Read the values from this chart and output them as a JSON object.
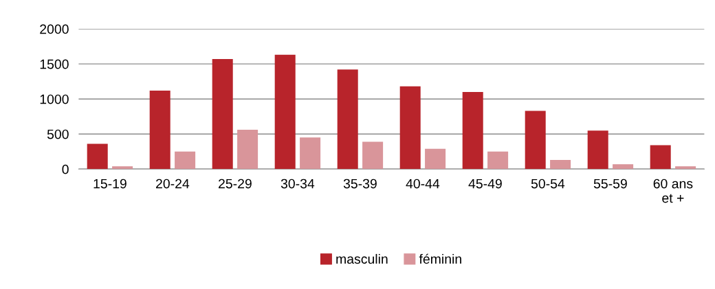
{
  "chart_data": {
    "type": "bar",
    "categories": [
      "15-19",
      "20-24",
      "25-29",
      "30-34",
      "35-39",
      "40-44",
      "45-49",
      "50-54",
      "55-59",
      "60 ans\net +"
    ],
    "series": [
      {
        "name": "masculin",
        "color": "#b8242b",
        "values": [
          360,
          1120,
          1570,
          1630,
          1420,
          1180,
          1100,
          830,
          550,
          340
        ]
      },
      {
        "name": "féminin",
        "color": "#d9959a",
        "values": [
          40,
          250,
          560,
          450,
          390,
          290,
          250,
          130,
          70,
          40
        ]
      }
    ],
    "ylim": [
      0,
      2000
    ],
    "yticks": [
      0,
      500,
      1000,
      1500,
      2000
    ],
    "grid": "y",
    "legend": "bottom"
  }
}
